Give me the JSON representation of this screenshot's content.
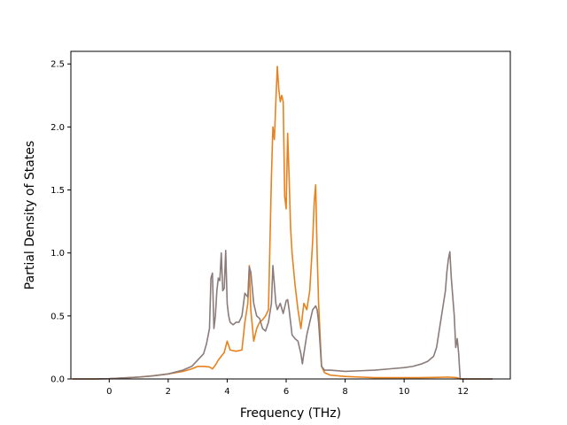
{
  "chart_data": {
    "type": "line",
    "title": "",
    "xlabel": "Frequency (THz)",
    "ylabel": "Partial Density of States",
    "xlim": [
      -1.3,
      13.6
    ],
    "ylim": [
      0,
      2.6
    ],
    "xticks": [
      0,
      2,
      4,
      6,
      8,
      10,
      12
    ],
    "yticks": [
      0.0,
      0.5,
      1.0,
      1.5,
      2.0,
      2.5
    ],
    "grid": false,
    "legend": "none",
    "series": [
      {
        "color": "#e8821e",
        "x": [
          -1.25,
          -0.5,
          0,
          0.5,
          1,
          1.5,
          2,
          2.5,
          2.8,
          3.0,
          3.2,
          3.4,
          3.5,
          3.6,
          3.7,
          3.8,
          3.9,
          4.0,
          4.1,
          4.3,
          4.5,
          4.6,
          4.7,
          4.75,
          4.8,
          4.9,
          5.0,
          5.1,
          5.2,
          5.3,
          5.4,
          5.5,
          5.55,
          5.6,
          5.65,
          5.7,
          5.75,
          5.8,
          5.85,
          5.9,
          5.95,
          6.0,
          6.05,
          6.1,
          6.15,
          6.2,
          6.3,
          6.4,
          6.5,
          6.6,
          6.7,
          6.8,
          6.9,
          6.95,
          7.0,
          7.05,
          7.1,
          7.2,
          7.3,
          7.5,
          8.0,
          8.5,
          9.0,
          10.0,
          10.5,
          11.0,
          11.5,
          11.8,
          11.9,
          13.0
        ],
        "y": [
          0.0,
          0.0,
          0.002,
          0.008,
          0.015,
          0.025,
          0.04,
          0.06,
          0.08,
          0.1,
          0.1,
          0.095,
          0.08,
          0.11,
          0.15,
          0.18,
          0.21,
          0.3,
          0.23,
          0.22,
          0.23,
          0.45,
          0.6,
          0.9,
          0.55,
          0.3,
          0.4,
          0.45,
          0.47,
          0.5,
          0.55,
          1.6,
          2.0,
          1.9,
          2.2,
          2.48,
          2.3,
          2.2,
          2.25,
          2.2,
          1.45,
          1.35,
          1.95,
          1.6,
          1.2,
          1.0,
          0.75,
          0.55,
          0.4,
          0.6,
          0.55,
          0.7,
          1.1,
          1.4,
          1.54,
          1.0,
          0.6,
          0.1,
          0.05,
          0.03,
          0.02,
          0.015,
          0.01,
          0.01,
          0.01,
          0.012,
          0.015,
          0.01,
          0.0,
          0.0
        ]
      },
      {
        "color": "#8c7b7b",
        "x": [
          -1.25,
          -0.5,
          0,
          0.5,
          1,
          1.5,
          2,
          2.5,
          2.8,
          3.0,
          3.2,
          3.3,
          3.4,
          3.45,
          3.5,
          3.55,
          3.6,
          3.65,
          3.7,
          3.75,
          3.8,
          3.85,
          3.9,
          3.95,
          4.0,
          4.05,
          4.1,
          4.2,
          4.3,
          4.4,
          4.5,
          4.6,
          4.7,
          4.75,
          4.8,
          4.9,
          5.0,
          5.1,
          5.2,
          5.3,
          5.4,
          5.5,
          5.55,
          5.6,
          5.65,
          5.7,
          5.8,
          5.9,
          6.0,
          6.05,
          6.1,
          6.15,
          6.2,
          6.3,
          6.4,
          6.5,
          6.55,
          6.6,
          6.7,
          6.8,
          6.9,
          7.0,
          7.05,
          7.1,
          7.2,
          7.3,
          7.5,
          8.0,
          8.5,
          9.0,
          9.5,
          10.0,
          10.3,
          10.6,
          10.8,
          11.0,
          11.1,
          11.2,
          11.3,
          11.4,
          11.45,
          11.5,
          11.55,
          11.6,
          11.7,
          11.75,
          11.8,
          11.85,
          11.9,
          13.0
        ],
        "y": [
          0.0,
          0.0,
          0.002,
          0.008,
          0.015,
          0.025,
          0.04,
          0.07,
          0.1,
          0.15,
          0.2,
          0.28,
          0.4,
          0.8,
          0.84,
          0.4,
          0.5,
          0.7,
          0.8,
          0.78,
          1.0,
          0.7,
          0.72,
          1.02,
          0.6,
          0.5,
          0.45,
          0.43,
          0.45,
          0.45,
          0.5,
          0.68,
          0.65,
          0.89,
          0.85,
          0.6,
          0.5,
          0.48,
          0.4,
          0.38,
          0.45,
          0.6,
          0.9,
          0.75,
          0.6,
          0.55,
          0.6,
          0.52,
          0.62,
          0.63,
          0.55,
          0.45,
          0.35,
          0.32,
          0.3,
          0.2,
          0.12,
          0.2,
          0.35,
          0.45,
          0.55,
          0.58,
          0.55,
          0.45,
          0.1,
          0.07,
          0.07,
          0.06,
          0.065,
          0.07,
          0.08,
          0.09,
          0.1,
          0.12,
          0.14,
          0.18,
          0.25,
          0.4,
          0.55,
          0.7,
          0.85,
          0.95,
          1.01,
          0.8,
          0.5,
          0.25,
          0.32,
          0.2,
          0.0,
          0.0
        ]
      }
    ]
  }
}
